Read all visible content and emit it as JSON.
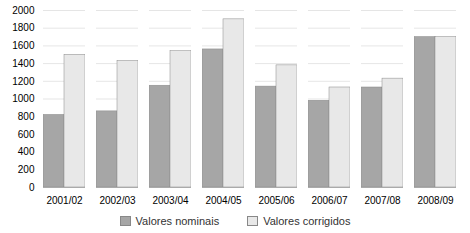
{
  "chart_data": {
    "type": "bar",
    "categories": [
      "2001/02",
      "2002/03",
      "2003/04",
      "2004/05",
      "2005/06",
      "2006/07",
      "2007/08",
      "2008/09"
    ],
    "series": [
      {
        "name": "Valores nominais",
        "color": "#a6a6a6",
        "values": [
          820,
          860,
          1150,
          1560,
          1140,
          980,
          1130,
          1700
        ]
      },
      {
        "name": "Valores corrigidos",
        "color": "#e8e8e8",
        "values": [
          1500,
          1430,
          1540,
          1900,
          1380,
          1130,
          1230,
          1700
        ]
      }
    ],
    "ylim": [
      0,
      2000
    ],
    "yticks": [
      0,
      200,
      400,
      600,
      800,
      1000,
      1200,
      1400,
      1600,
      1800,
      2000
    ],
    "grid": true,
    "legend": "bottom"
  }
}
